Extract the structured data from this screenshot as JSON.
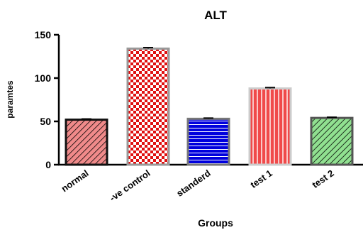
{
  "chart_data": {
    "type": "bar",
    "title": "ALT",
    "xlabel": "Groups",
    "ylabel": "paramtes",
    "ylim": [
      0,
      150
    ],
    "yticks": [
      0,
      50,
      100,
      150
    ],
    "categories": [
      "normal",
      "-ve control",
      "standerd",
      "test 1",
      "test 2"
    ],
    "values": [
      52,
      134,
      53,
      88,
      54
    ],
    "errors": [
      0.8,
      1.2,
      0.8,
      1.0,
      0.8
    ],
    "patterns": [
      "diagonal-hatch",
      "checkerboard",
      "horizontal-lines",
      "vertical-lines",
      "diagonal-hatch"
    ],
    "fill_colors": [
      "#f08a8a",
      "#e01010",
      "#0000dd",
      "#f04a4a",
      "#90e090"
    ],
    "pattern_colors": [
      "#000000",
      "#ffffff",
      "#ffffff",
      "#ffffff",
      "#000000"
    ],
    "edge_colors": [
      "#111111",
      "#999999",
      "#777777",
      "#cccccc",
      "#555555"
    ],
    "grid": false
  }
}
